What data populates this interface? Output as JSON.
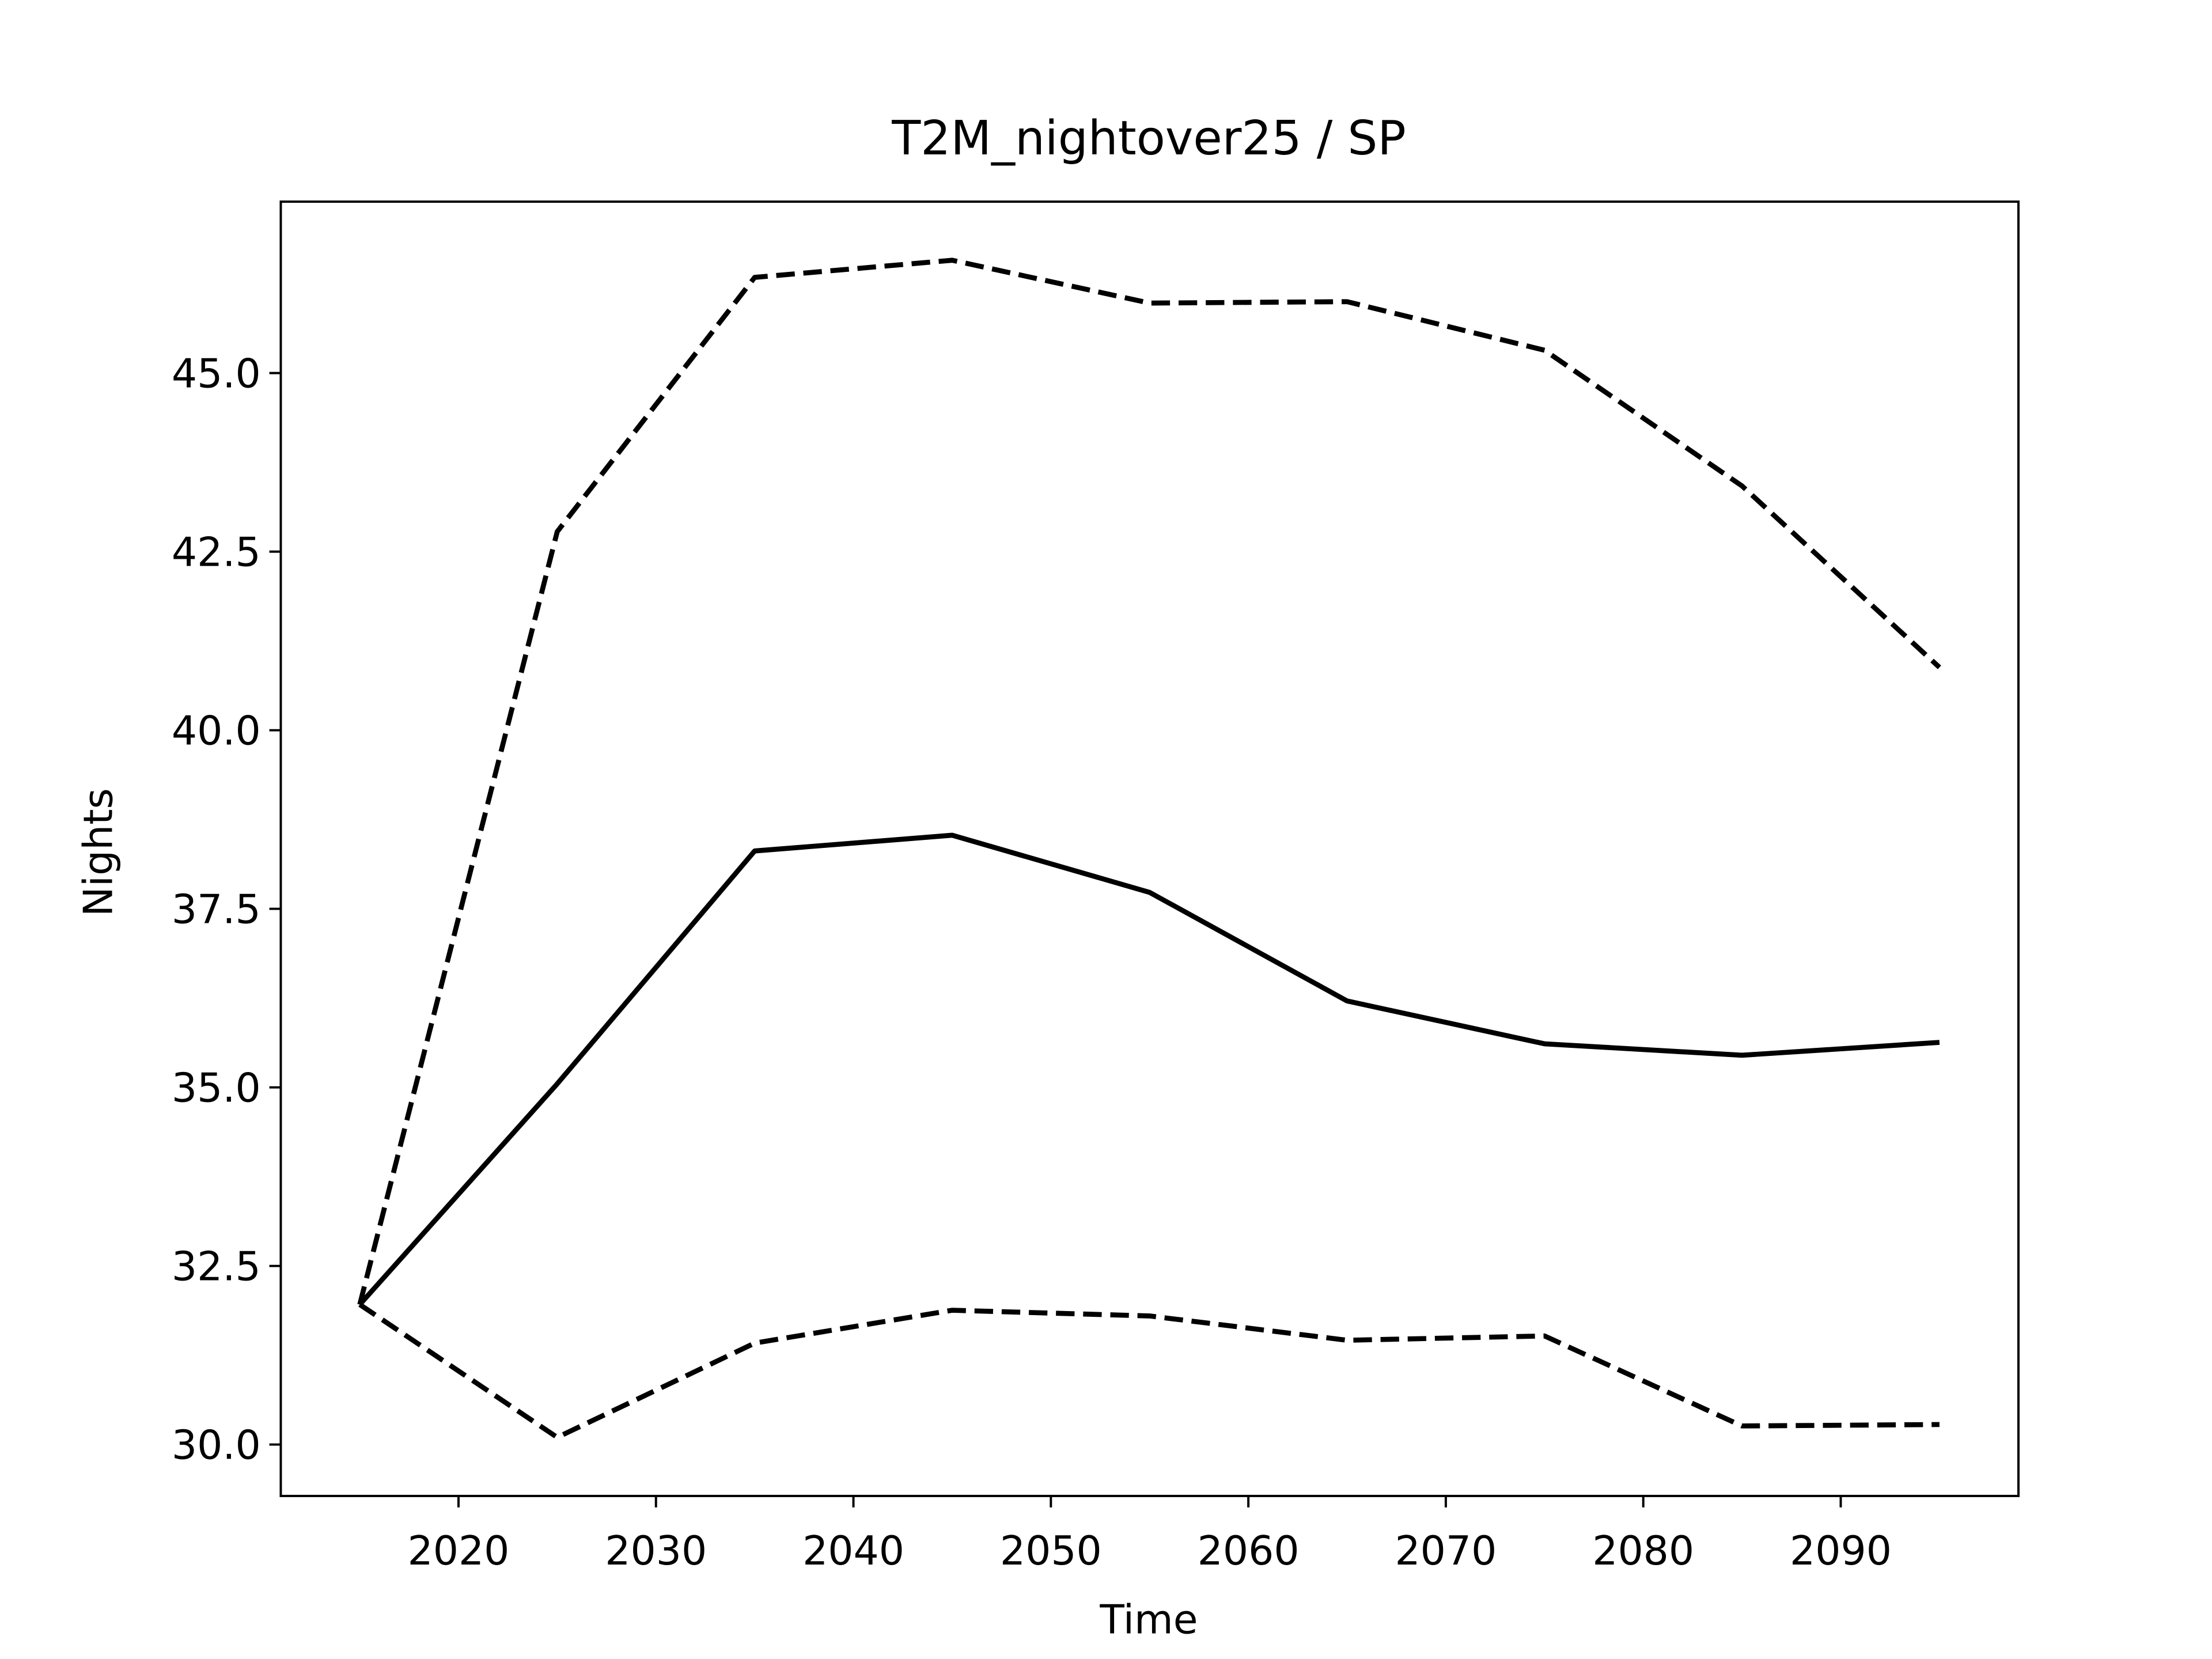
{
  "chart_data": {
    "type": "line",
    "title": "T2M_nightover25 / SP",
    "xlabel": "Time",
    "ylabel": "Nights",
    "x": [
      2015,
      2025,
      2035,
      2045,
      2055,
      2065,
      2075,
      2085,
      2095
    ],
    "series": [
      {
        "color": "#000000",
        "linestyle": "solid",
        "values": [
          31.96,
          35.05,
          38.31,
          38.53,
          37.73,
          36.21,
          35.61,
          35.45,
          35.63
        ]
      },
      {
        "color": "#000000",
        "linestyle": "dashed",
        "values": [
          31.96,
          42.78,
          46.34,
          46.58,
          45.98,
          46.0,
          45.32,
          43.42,
          40.88
        ]
      },
      {
        "color": "#000000",
        "linestyle": "dashed",
        "values": [
          31.96,
          30.1,
          31.42,
          31.88,
          31.8,
          31.46,
          31.52,
          30.26,
          30.28
        ]
      }
    ],
    "xlim": [
      2011,
      2099
    ],
    "ylim": [
      29.28,
      47.4
    ],
    "xticks": [
      2020,
      2030,
      2040,
      2050,
      2060,
      2070,
      2080,
      2090
    ],
    "yticks": [
      {
        "value": 30,
        "label": "30.0"
      },
      32.5,
      {
        "value": 35,
        "label": "35.0"
      },
      37.5,
      {
        "value": 40,
        "label": "40.0"
      },
      42.5,
      {
        "value": 45,
        "label": "45.0"
      }
    ],
    "grid": false
  }
}
